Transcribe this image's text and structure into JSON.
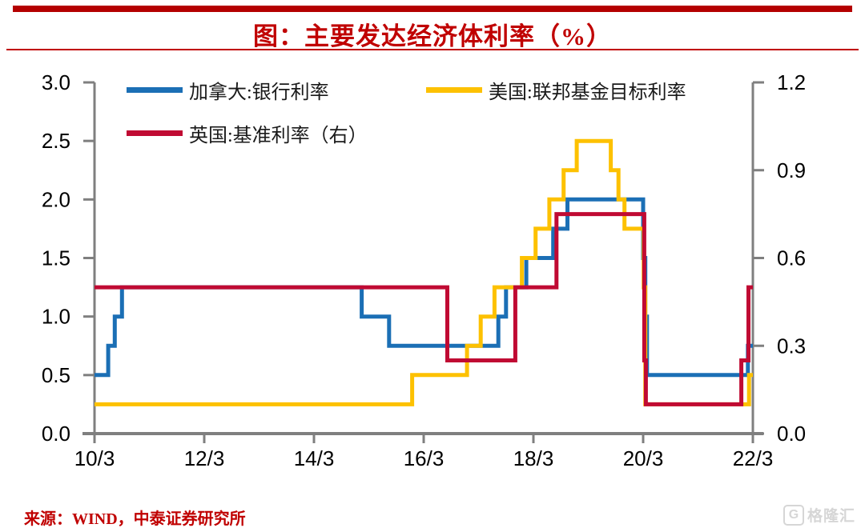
{
  "header": {
    "title": "图：主要发达经济体利率（%）"
  },
  "footer": {
    "source": "来源：WIND，中泰证券研究所",
    "logo_text": "格隆汇",
    "logo_icon": "G"
  },
  "colors": {
    "accent_red": "#c00000",
    "top_bar_red": "#b40000",
    "axis_gray": "#7f7f7f",
    "canada_blue": "#1b6fb5",
    "us_yellow": "#fdc101",
    "uk_red": "#c00a33"
  },
  "chart_data": {
    "type": "line",
    "line_style": "step",
    "title": "图：主要发达经济体利率（%）",
    "grid": false,
    "legend_position": "top-left, two rows",
    "x_axis": {
      "min": 2010.17,
      "max": 2022.17,
      "tick_years": [
        2010.17,
        2012.17,
        2014.17,
        2016.17,
        2018.17,
        2020.17,
        2022.17
      ],
      "tick_labels": [
        "10/3",
        "12/3",
        "14/3",
        "16/3",
        "18/3",
        "20/3",
        "22/3"
      ]
    },
    "left_axis": {
      "min": 0.0,
      "max": 3.0,
      "ticks": [
        0.0,
        0.5,
        1.0,
        1.5,
        2.0,
        2.5,
        3.0
      ]
    },
    "right_axis": {
      "min": 0.0,
      "max": 1.2,
      "ticks": [
        0.0,
        0.3,
        0.6,
        0.9,
        1.2
      ]
    },
    "series": [
      {
        "name": "加拿大:银行利率",
        "axis": "left",
        "color": "#1b6fb5",
        "steps": [
          [
            2010.17,
            0.5
          ],
          [
            2010.42,
            0.75
          ],
          [
            2010.54,
            1.0
          ],
          [
            2010.67,
            1.25
          ],
          [
            2015.04,
            1.0
          ],
          [
            2015.54,
            0.75
          ],
          [
            2017.53,
            1.0
          ],
          [
            2017.67,
            1.25
          ],
          [
            2018.04,
            1.5
          ],
          [
            2018.53,
            1.75
          ],
          [
            2018.79,
            2.0
          ],
          [
            2020.17,
            1.5
          ],
          [
            2020.21,
            1.0
          ],
          [
            2020.24,
            0.5
          ],
          [
            2022.08,
            0.75
          ]
        ]
      },
      {
        "name": "美国:联邦基金目标利率",
        "axis": "left",
        "color": "#fdc101",
        "steps": [
          [
            2010.17,
            0.25
          ],
          [
            2015.96,
            0.5
          ],
          [
            2016.96,
            0.75
          ],
          [
            2017.21,
            1.0
          ],
          [
            2017.46,
            1.25
          ],
          [
            2017.96,
            1.5
          ],
          [
            2018.21,
            1.75
          ],
          [
            2018.46,
            2.0
          ],
          [
            2018.72,
            2.25
          ],
          [
            2018.96,
            2.5
          ],
          [
            2019.58,
            2.25
          ],
          [
            2019.72,
            2.0
          ],
          [
            2019.83,
            1.75
          ],
          [
            2020.18,
            1.25
          ],
          [
            2020.21,
            0.25
          ],
          [
            2022.1,
            0.5
          ]
        ]
      },
      {
        "name": "英国:基准利率（右）",
        "axis": "right",
        "color": "#c00a33",
        "steps": [
          [
            2010.17,
            0.5
          ],
          [
            2016.6,
            0.25
          ],
          [
            2017.84,
            0.5
          ],
          [
            2018.59,
            0.75
          ],
          [
            2020.19,
            0.25
          ],
          [
            2020.22,
            0.1
          ],
          [
            2021.96,
            0.25
          ],
          [
            2022.09,
            0.5
          ]
        ]
      }
    ]
  }
}
